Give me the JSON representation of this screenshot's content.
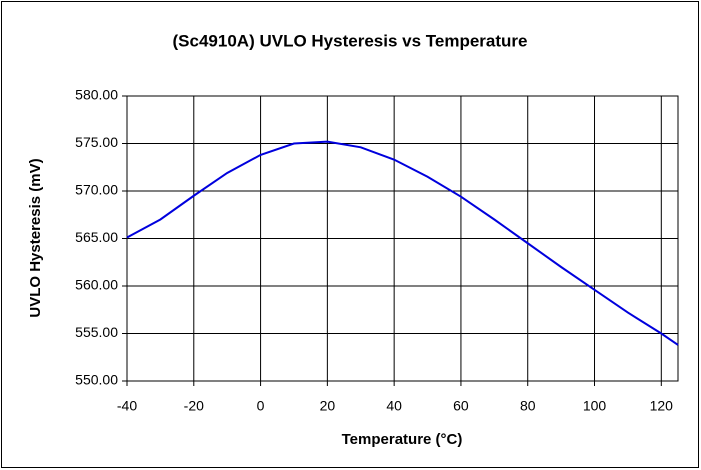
{
  "chart_data": {
    "type": "line",
    "title": "(Sc4910A) UVLO Hysteresis vs Temperature",
    "xlabel": "Temperature (°C)",
    "ylabel": "UVLO Hysteresis (mV)",
    "x": [
      -40,
      -30,
      -20,
      -10,
      0,
      10,
      20,
      30,
      40,
      50,
      60,
      70,
      80,
      90,
      100,
      110,
      120,
      125
    ],
    "series": [
      {
        "name": "UVLO Hysteresis",
        "color": "#0000dd",
        "values": [
          565.1,
          567.0,
          569.5,
          571.9,
          573.8,
          575.0,
          575.2,
          574.6,
          573.3,
          571.5,
          569.4,
          567.0,
          564.5,
          562.0,
          559.6,
          557.2,
          555.0,
          553.8
        ]
      }
    ],
    "xlim": [
      -40,
      125
    ],
    "xticks": [
      -40,
      -20,
      0,
      20,
      40,
      60,
      80,
      100,
      120
    ],
    "ylim": [
      550,
      580
    ],
    "yticks": [
      {
        "value": 550,
        "label": "550.00"
      },
      {
        "value": 555,
        "label": "555.00"
      },
      {
        "value": 560,
        "label": "560.00"
      },
      {
        "value": 565,
        "label": "565.00"
      },
      {
        "value": 570,
        "label": "570.00"
      },
      {
        "value": 575,
        "label": "575.00"
      },
      {
        "value": 580,
        "label": "580.00"
      }
    ],
    "grid": true
  }
}
